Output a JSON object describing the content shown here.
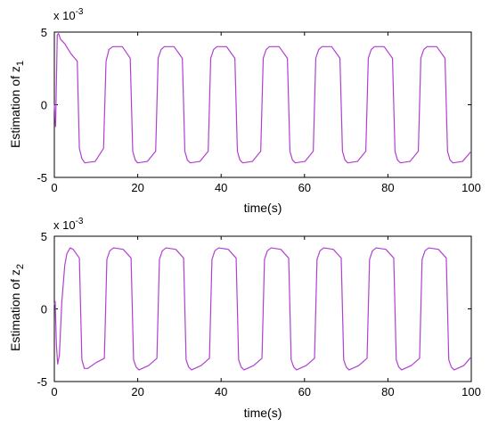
{
  "chart_data": [
    {
      "type": "line",
      "xlabel": "time(s)",
      "ylabel_prefix": "Estimation of z",
      "ylabel_subscript": "1",
      "scale_label_prefix": "x 10",
      "scale_label_exponent": "-3",
      "xlim": [
        0,
        100
      ],
      "ylim": [
        -5,
        5
      ],
      "xticks": [
        "0",
        "20",
        "40",
        "60",
        "80",
        "100"
      ],
      "yticks": [
        "5",
        "0",
        "-5"
      ],
      "series_color": "#b040d0",
      "series": [
        {
          "x": [
            0,
            0.3,
            0.7,
            1.0,
            1.5,
            2.5,
            4.0,
            5.5,
            6.0,
            6.6,
            7.3,
            9.8,
            11.8,
            12.4,
            13.1,
            14.0,
            16.3,
            18.2,
            18.8,
            19.4,
            20.0,
            22.3,
            24.3,
            24.9,
            25.6,
            26.4,
            28.7,
            30.7,
            31.3,
            31.9,
            32.6,
            34.9,
            36.9,
            37.5,
            38.2,
            39.0,
            41.3,
            43.3,
            43.9,
            44.5,
            45.2,
            47.5,
            49.5,
            50.1,
            50.8,
            51.6,
            53.9,
            55.9,
            56.5,
            57.1,
            57.8,
            60.1,
            62.1,
            62.7,
            63.4,
            64.2,
            66.5,
            68.5,
            69.1,
            69.7,
            70.4,
            72.7,
            74.7,
            75.3,
            76.0,
            76.8,
            79.1,
            81.1,
            81.7,
            82.3,
            83.0,
            85.3,
            87.3,
            87.9,
            88.6,
            89.4,
            91.7,
            93.7,
            94.3,
            94.9,
            95.6,
            97.9,
            100.0
          ],
          "y": [
            0,
            -1.5,
            4.8,
            4.9,
            4.5,
            4.2,
            3.5,
            3.0,
            -3.0,
            -3.7,
            -4.0,
            -3.9,
            -3.0,
            3.0,
            3.8,
            4.0,
            4.0,
            3.2,
            -3.2,
            -3.8,
            -4.0,
            -3.9,
            -3.2,
            3.2,
            3.8,
            4.0,
            4.0,
            3.2,
            -3.2,
            -3.8,
            -4.0,
            -3.9,
            -3.2,
            3.2,
            3.8,
            4.0,
            4.0,
            3.2,
            -3.2,
            -3.8,
            -4.0,
            -3.9,
            -3.2,
            3.2,
            3.8,
            4.0,
            4.0,
            3.2,
            -3.2,
            -3.8,
            -4.0,
            -3.9,
            -3.2,
            3.2,
            3.8,
            4.0,
            4.0,
            3.2,
            -3.2,
            -3.8,
            -4.0,
            -3.9,
            -3.2,
            3.2,
            3.8,
            4.0,
            4.0,
            3.2,
            -3.2,
            -3.8,
            -4.0,
            -3.9,
            -3.2,
            3.2,
            3.8,
            4.0,
            4.0,
            3.2,
            -3.2,
            -3.8,
            -4.0,
            -3.9,
            -3.2
          ]
        }
      ]
    },
    {
      "type": "line",
      "xlabel": "time(s)",
      "ylabel_prefix": "Estimation of z",
      "ylabel_subscript": "2",
      "scale_label_prefix": "x 10",
      "scale_label_exponent": "-3",
      "xlim": [
        0,
        100
      ],
      "ylim": [
        -5,
        5
      ],
      "xticks": [
        "0",
        "20",
        "40",
        "60",
        "80",
        "100"
      ],
      "yticks": [
        "5",
        "0",
        "-5"
      ],
      "series_color": "#b040d0",
      "series": [
        {
          "x": [
            0,
            0.2,
            0.5,
            0.8,
            1.2,
            1.8,
            2.5,
            3.0,
            3.8,
            4.5,
            6.0,
            6.6,
            7.2,
            8.0,
            10.0,
            12.0,
            12.6,
            13.3,
            14.2,
            16.5,
            18.4,
            19.0,
            19.6,
            20.3,
            22.6,
            24.6,
            25.2,
            25.9,
            26.8,
            29.1,
            31.0,
            31.6,
            32.2,
            32.9,
            35.2,
            37.2,
            37.8,
            38.5,
            39.4,
            41.7,
            43.6,
            44.2,
            44.8,
            45.5,
            47.8,
            49.8,
            50.4,
            51.1,
            52.0,
            54.3,
            56.2,
            56.8,
            57.4,
            58.1,
            60.4,
            62.4,
            63.0,
            63.7,
            64.6,
            66.9,
            68.8,
            69.4,
            70.0,
            70.7,
            73.0,
            75.0,
            75.6,
            76.3,
            77.2,
            79.5,
            81.4,
            82.0,
            82.6,
            83.3,
            85.6,
            87.6,
            88.2,
            88.9,
            89.8,
            92.1,
            94.0,
            94.6,
            95.2,
            95.9,
            98.2,
            100.0
          ],
          "y": [
            0.3,
            0.5,
            -2.5,
            -3.8,
            -3.2,
            0.5,
            3.0,
            3.8,
            4.2,
            4.1,
            3.5,
            -3.5,
            -4.1,
            -4.1,
            -3.7,
            -3.4,
            3.4,
            4.0,
            4.2,
            4.1,
            3.5,
            -3.5,
            -4.0,
            -4.2,
            -3.9,
            -3.4,
            3.4,
            4.0,
            4.2,
            4.1,
            3.5,
            -3.5,
            -4.0,
            -4.2,
            -3.9,
            -3.4,
            3.4,
            4.0,
            4.2,
            4.1,
            3.5,
            -3.5,
            -4.0,
            -4.2,
            -3.9,
            -3.4,
            3.4,
            4.0,
            4.2,
            4.1,
            3.5,
            -3.5,
            -4.0,
            -4.2,
            -3.9,
            -3.4,
            3.4,
            4.0,
            4.2,
            4.1,
            3.5,
            -3.5,
            -4.0,
            -4.2,
            -3.9,
            -3.4,
            3.4,
            4.0,
            4.2,
            4.1,
            3.5,
            -3.5,
            -4.0,
            -4.2,
            -3.9,
            -3.4,
            3.4,
            4.0,
            4.2,
            4.1,
            3.5,
            -3.5,
            -4.0,
            -4.2,
            -3.9,
            -3.3
          ]
        }
      ]
    }
  ]
}
